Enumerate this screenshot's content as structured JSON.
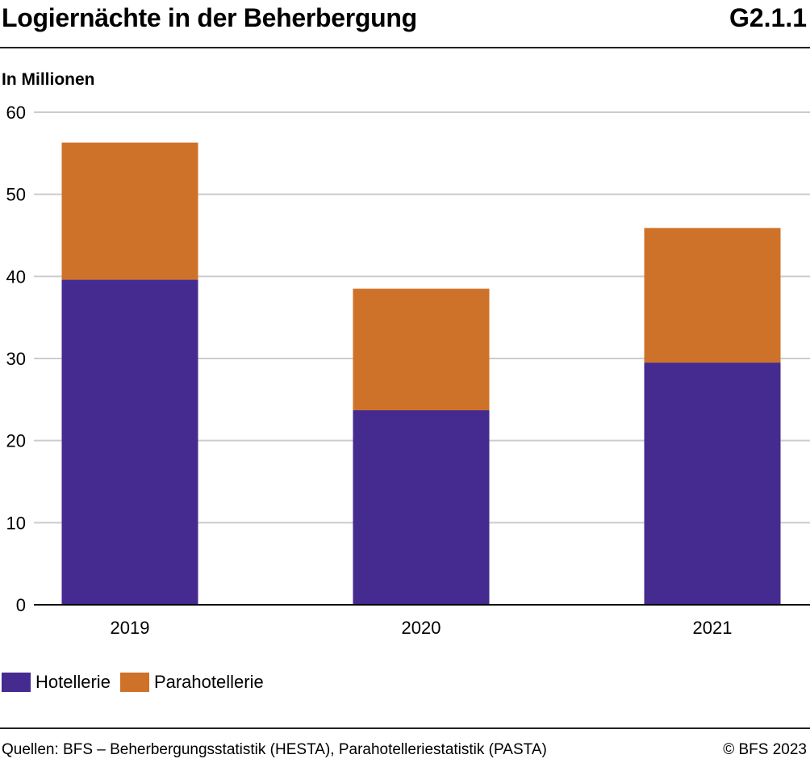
{
  "header": {
    "title": "Logiernächte in der Beherbergung",
    "chart_id": "G2.1.1"
  },
  "footer": {
    "source": "Quellen: BFS – Beherbergungsstatistik (HESTA), Parahotelleriestatistik (PASTA)",
    "copyright": "© BFS 2023"
  },
  "colors": {
    "hotellerie": "#452a8f",
    "parahotellerie": "#cf7229",
    "grid": "#cccccc",
    "axis": "#000000"
  },
  "chart_data": {
    "type": "bar",
    "stacked": true,
    "title": "Logiernächte in der Beherbergung",
    "ylabel": "In Millionen",
    "xlabel": "",
    "ylim": [
      0,
      60
    ],
    "yticks": [
      0,
      10,
      20,
      30,
      40,
      50,
      60
    ],
    "grid": true,
    "legend_position": "bottom-left",
    "categories": [
      "2019",
      "2020",
      "2021"
    ],
    "series": [
      {
        "name": "Hotellerie",
        "values": [
          39.6,
          23.7,
          29.5
        ]
      },
      {
        "name": "Parahotellerie",
        "values": [
          16.7,
          14.8,
          16.4
        ]
      }
    ]
  }
}
